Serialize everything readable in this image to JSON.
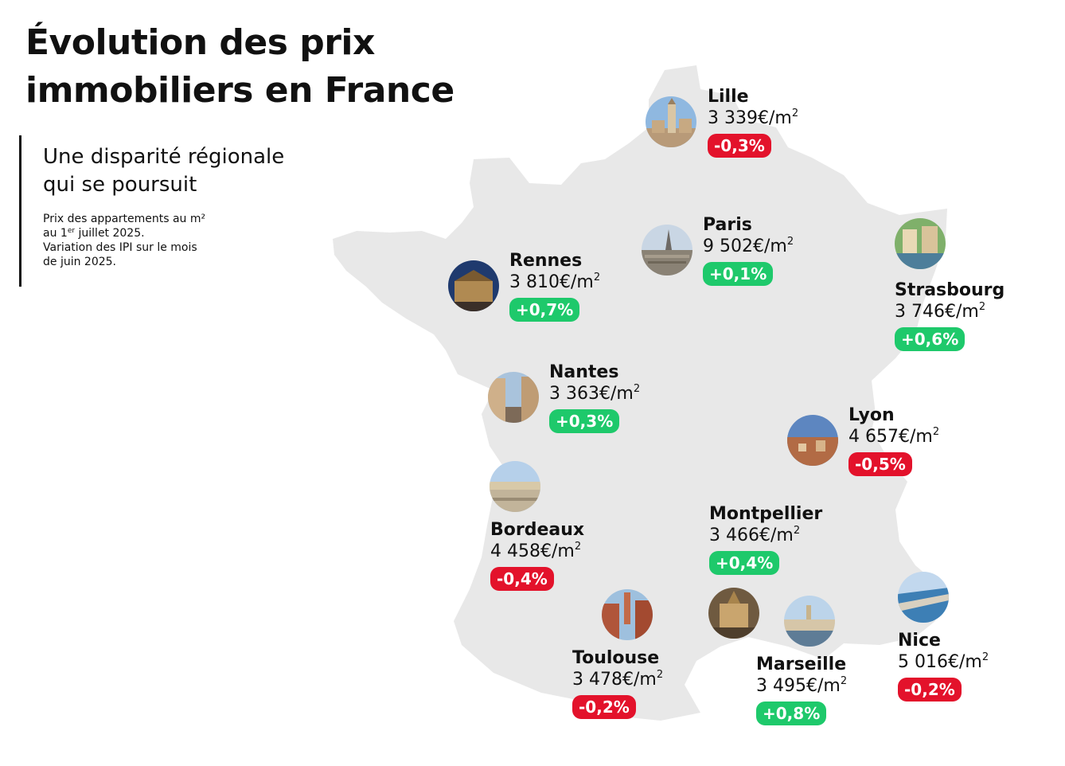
{
  "title": {
    "line1": "Évolution des prix",
    "line2": "immobiliers en France"
  },
  "subtitle": {
    "line1": "Une disparité régionale",
    "line2": "qui se poursuit"
  },
  "note": {
    "line1": "Prix des appartements au m²",
    "line2_pre": "au 1",
    "line2_sup": "er",
    "line2_post": " juillet 2025.",
    "line3": "Variation des IPI sur le mois",
    "line4": "de juin 2025."
  },
  "unit": "€/m",
  "unit_sup": "2",
  "colors": {
    "map": "#e8e8e8",
    "down": "#e3122b",
    "up": "#1ec96b",
    "text": "#111111"
  },
  "cities": {
    "lille": {
      "name": "Lille",
      "price": "3 339",
      "change": "-0,3%",
      "trend": "down"
    },
    "paris": {
      "name": "Paris",
      "price": "9 502",
      "change": "+0,1%",
      "trend": "up"
    },
    "strasbourg": {
      "name": "Strasbourg",
      "price": "3 746",
      "change": "+0,6%",
      "trend": "up"
    },
    "rennes": {
      "name": "Rennes",
      "price": "3 810",
      "change": "+0,7%",
      "trend": "up"
    },
    "nantes": {
      "name": "Nantes",
      "price": "3 363",
      "change": "+0,3%",
      "trend": "up"
    },
    "lyon": {
      "name": "Lyon",
      "price": "4 657",
      "change": "-0,5%",
      "trend": "down"
    },
    "bordeaux": {
      "name": "Bordeaux",
      "price": "4 458",
      "change": "-0,4%",
      "trend": "down"
    },
    "montpellier": {
      "name": "Montpellier",
      "price": "3 466",
      "change": "+0,4%",
      "trend": "up"
    },
    "toulouse": {
      "name": "Toulouse",
      "price": "3 478",
      "change": "-0,2%",
      "trend": "down"
    },
    "marseille": {
      "name": "Marseille",
      "price": "3 495",
      "change": "+0,8%",
      "trend": "up"
    },
    "nice": {
      "name": "Nice",
      "price": "5 016",
      "change": "-0,2%",
      "trend": "down"
    }
  }
}
